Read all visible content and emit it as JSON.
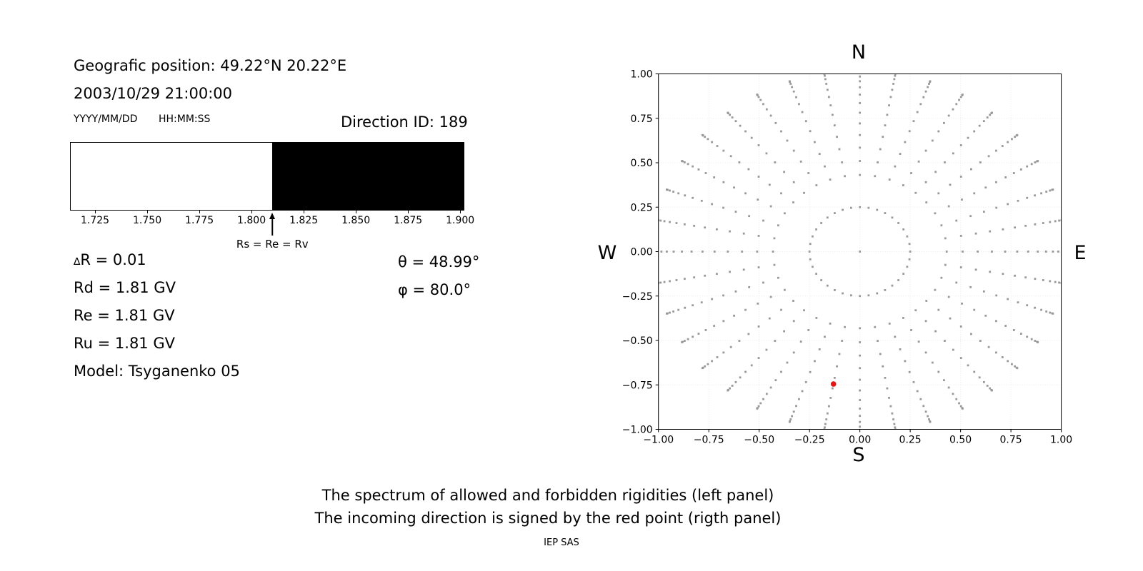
{
  "header": {
    "geo_position": "Geografic position: 49.22°N 20.22°E",
    "datetime": "2003/10/29 21:00:00",
    "date_format": "YYYY/MM/DD",
    "time_format": "HH:MM:SS",
    "direction_id": "Direction ID: 189"
  },
  "left_values": {
    "delta_symbol": "∆",
    "delta_r_rest": "R = 0.01",
    "rd": "Rd = 1.81 GV",
    "re": "Re = 1.81 GV",
    "ru": "Ru = 1.81 GV",
    "model": "Model: Tsyganenko 05",
    "theta": "θ = 48.99°",
    "phi": "φ = 80.0°"
  },
  "compass": {
    "north": "N",
    "south": "S",
    "east": "E",
    "west": "W"
  },
  "captions": {
    "line1": "The spectrum of allowed and forbidden rigidities (left panel)",
    "line2": "The incoming direction is signed by the red point (rigth panel)",
    "credit": "IEP SAS"
  },
  "chart_data": [
    {
      "type": "bar",
      "name": "rigidity-spectrum",
      "x_range": [
        1.713,
        1.902
      ],
      "allowed_range": [
        1.713,
        1.81
      ],
      "forbidden_range": [
        1.81,
        1.902
      ],
      "boundary_value": 1.81,
      "ticks": [
        1.725,
        1.75,
        1.775,
        1.8,
        1.825,
        1.85,
        1.875,
        1.9
      ],
      "tick_labels": [
        "1.725",
        "1.750",
        "1.775",
        "1.800",
        "1.825",
        "1.850",
        "1.875",
        "1.900"
      ],
      "allowed_color": "#ffffff",
      "forbidden_color": "#000000",
      "annotation": "Rs = Re = Rv"
    },
    {
      "type": "scatter",
      "name": "incoming-direction-grid",
      "axis_range": [
        -1,
        1
      ],
      "tick_values": [
        -1.0,
        -0.75,
        -0.5,
        -0.25,
        0.0,
        0.25,
        0.5,
        0.75,
        1.0
      ],
      "tick_labels": [
        "−1.00",
        "−0.75",
        "−0.50",
        "−0.25",
        "0.00",
        "0.25",
        "0.50",
        "0.75",
        "1.00"
      ],
      "grid": true,
      "grid_step": 0.25,
      "azimuth_start_deg": 0,
      "azimuth_step_deg": 10,
      "azimuth_count": 36,
      "ring_radius": 0.25,
      "zenith_min_deg": 25,
      "zenith_max_deg": 90,
      "zenith_step_deg": 5,
      "tip_scale": 1.02,
      "center_dot": true,
      "dot_color": "#999999",
      "red_point": {
        "x": -0.131,
        "y": -0.745
      },
      "red_color": "#ee1111"
    }
  ]
}
